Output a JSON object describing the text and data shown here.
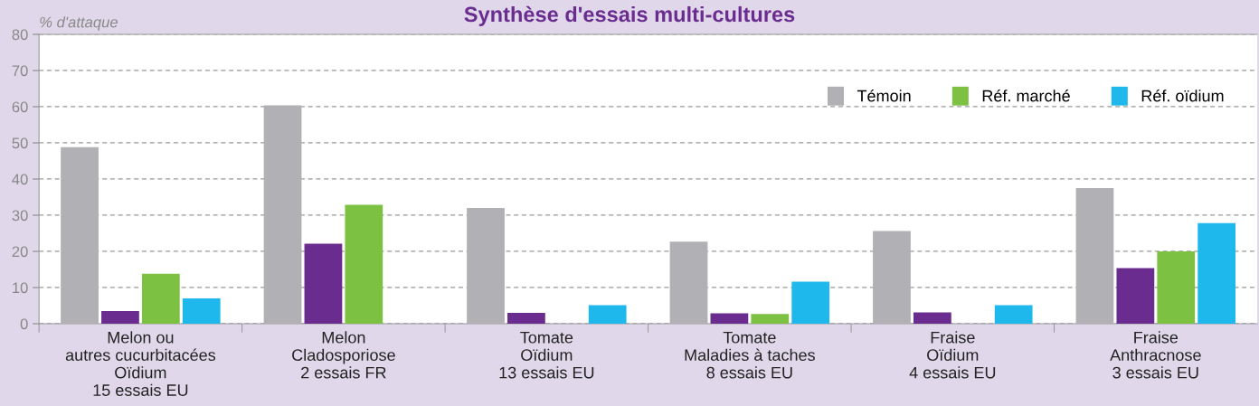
{
  "chart_data": {
    "type": "bar",
    "title": "Synthèse d'essais multi-cultures",
    "ylabel": "% d'attaque",
    "categories": [
      "Melon ou\nautres cucurbitacées\nOïdium\n15 essais EU",
      "Melon\nCladosporiose\n2 essais FR",
      "Tomate\nOïdium\n13 essais EU",
      "Tomate\nMaladies à taches\n8 essais EU",
      "Fraise\nOïdium\n4 essais EU",
      "Fraise\nAnthracnose\n3 essais EU"
    ],
    "series": [
      {
        "name": "Témoin",
        "color": "#b0b0b5",
        "values": [
          48.8,
          60.4,
          32.0,
          22.7,
          25.6,
          37.5
        ]
      },
      {
        "color": "#6a2d8f",
        "values": [
          3.5,
          22.1,
          3.0,
          2.9,
          3.1,
          15.4
        ]
      },
      {
        "name": "Réf. marché",
        "color": "#7dc143",
        "values": [
          13.8,
          32.9,
          null,
          2.7,
          null,
          20.0
        ]
      },
      {
        "name": "Réf. oïdium",
        "color": "#1fb8ec",
        "values": [
          7.0,
          null,
          5.1,
          11.6,
          5.1,
          27.8
        ]
      }
    ],
    "ylim": [
      0,
      80
    ],
    "yticks": [
      0,
      10,
      20,
      30,
      40,
      50,
      60,
      70,
      80
    ],
    "grid": "y",
    "legend": "top right"
  }
}
